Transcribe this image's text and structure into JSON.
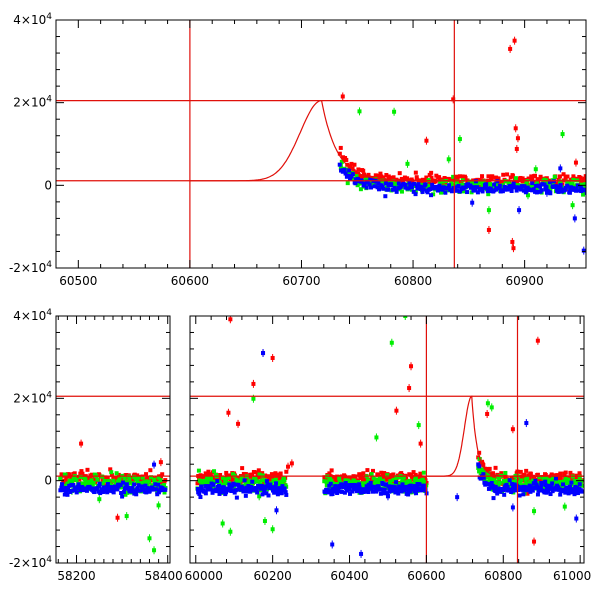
{
  "chart_data": [
    {
      "type": "scatter",
      "title": "",
      "xlabel": "",
      "ylabel": "",
      "xlim": [
        60480,
        60955
      ],
      "ylim": [
        -20000,
        40000
      ],
      "x_ticks": [
        {
          "value": 60500,
          "label": "60500"
        },
        {
          "value": 60600,
          "label": "60600"
        },
        {
          "value": 60700,
          "label": "60700"
        },
        {
          "value": 60800,
          "label": "60800"
        },
        {
          "value": 60900,
          "label": "60900"
        }
      ],
      "y_ticks": [
        {
          "value": -20000,
          "label": "-2×10⁴"
        },
        {
          "value": 0,
          "label": "0"
        },
        {
          "value": 20000,
          "label": "2×10⁴"
        },
        {
          "value": 40000,
          "label": "4×10⁴"
        }
      ],
      "hlines": [
        1100,
        20500
      ],
      "vlines": [
        60600,
        60837
      ],
      "model_curve": {
        "t0": 60718,
        "peak": 20500,
        "baseline": 1100,
        "rise_sigma": 19,
        "decay_tau": 14
      },
      "series": [
        {
          "name": "red",
          "color": "#ff0000",
          "x_start": 60735,
          "x_end": 60955,
          "baseline": 1200,
          "noise": 1400,
          "outliers": [
            [
              60737,
              21500
            ],
            [
              60812,
              10800
            ],
            [
              60836,
              20800
            ],
            [
              60868,
              -10800
            ],
            [
              60887,
              33000
            ],
            [
              60891,
              35000
            ],
            [
              60892,
              13800
            ],
            [
              60893,
              8800
            ],
            [
              60894,
              11400
            ],
            [
              60889,
              -13700
            ],
            [
              60890,
              -15200
            ],
            [
              60946,
              5500
            ]
          ]
        },
        {
          "name": "green",
          "color": "#00ee00",
          "x_start": 60735,
          "x_end": 60955,
          "baseline": -200,
          "noise": 1500,
          "outliers": [
            [
              60752,
              17900
            ],
            [
              60783,
              17800
            ],
            [
              60795,
              5200
            ],
            [
              60808,
              -1200
            ],
            [
              60832,
              6300
            ],
            [
              60842,
              11200
            ],
            [
              60868,
              -6000
            ],
            [
              60910,
              3900
            ],
            [
              60934,
              12400
            ],
            [
              60943,
              -4800
            ],
            [
              60903,
              -2400
            ]
          ]
        },
        {
          "name": "blue",
          "color": "#0000ff",
          "x_start": 60735,
          "x_end": 60955,
          "baseline": -700,
          "noise": 1200,
          "outliers": [
            [
              60853,
              -4200
            ],
            [
              60895,
              -6000
            ],
            [
              60932,
              4100
            ],
            [
              60945,
              -8000
            ],
            [
              60953,
              -15800
            ],
            [
              60920,
              -1800
            ]
          ]
        }
      ]
    },
    {
      "type": "scatter",
      "title": "",
      "xlabel": "",
      "ylabel": "",
      "ylim": [
        -20000,
        40000
      ],
      "segments": [
        {
          "xlim": [
            58155,
            58405
          ]
        },
        {
          "xlim": [
            59985,
            61010
          ]
        }
      ],
      "x_ticks": [
        {
          "value": 58200,
          "label": "58200",
          "segment": 0
        },
        {
          "value": 58400,
          "label": "58400",
          "segment": 0
        },
        {
          "value": 60000,
          "label": "60000",
          "segment": 1
        },
        {
          "value": 60200,
          "label": "60200",
          "segment": 1
        },
        {
          "value": 60400,
          "label": "60400",
          "segment": 1
        },
        {
          "value": 60600,
          "label": "60600",
          "segment": 1
        },
        {
          "value": 60800,
          "label": "60800",
          "segment": 1
        },
        {
          "value": 61000,
          "label": "61000",
          "segment": 1
        }
      ],
      "y_ticks": [
        {
          "value": -20000,
          "label": "-2×10⁴"
        },
        {
          "value": 0,
          "label": "0"
        },
        {
          "value": 20000,
          "label": "2×10⁴"
        },
        {
          "value": 40000,
          "label": "4×10⁴"
        }
      ],
      "hlines": [
        1100,
        20500
      ],
      "vlines": [
        60600,
        60837
      ],
      "model_curve": {
        "t0": 60718,
        "peak": 20500,
        "baseline": 1100,
        "rise_sigma": 19,
        "decay_tau": 14
      },
      "seasons": [
        [
          58165,
          58395
        ],
        [
          60005,
          60235
        ],
        [
          60335,
          60600
        ],
        [
          60735,
          61005
        ]
      ],
      "series": [
        {
          "name": "red",
          "color": "#ff0000",
          "baseline": 500,
          "noise": 1500,
          "outliers": [
            [
              58210,
              9000
            ],
            [
              58290,
              -9000
            ],
            [
              58385,
              4500
            ],
            [
              60090,
              39200
            ],
            [
              60085,
              16500
            ],
            [
              60110,
              13800
            ],
            [
              60150,
              23500
            ],
            [
              60175,
              31000
            ],
            [
              60200,
              29800
            ],
            [
              60240,
              3400
            ],
            [
              60522,
              17000
            ],
            [
              60555,
              22500
            ],
            [
              60560,
              27800
            ],
            [
              60880,
              -14800
            ],
            [
              60890,
              34000
            ],
            [
              60825,
              12500
            ],
            [
              60758,
              16200
            ],
            [
              60585,
              9000
            ],
            [
              60250,
              4200
            ]
          ]
        },
        {
          "name": "green",
          "color": "#00ee00",
          "baseline": -800,
          "noise": 1800,
          "outliers": [
            [
              58190,
              -2500
            ],
            [
              58250,
              -4500
            ],
            [
              58310,
              -8600
            ],
            [
              58360,
              -14000
            ],
            [
              58370,
              -16900
            ],
            [
              58380,
              -6000
            ],
            [
              60070,
              -10400
            ],
            [
              60090,
              -12400
            ],
            [
              60150,
              19900
            ],
            [
              60165,
              -3800
            ],
            [
              60180,
              -9800
            ],
            [
              60200,
              -11800
            ],
            [
              60510,
              33500
            ],
            [
              60545,
              40000
            ],
            [
              60560,
              -2400
            ],
            [
              60580,
              13500
            ],
            [
              60770,
              17800
            ],
            [
              60760,
              18800
            ],
            [
              60880,
              -7400
            ],
            [
              60960,
              -6300
            ],
            [
              60470,
              10500
            ]
          ]
        },
        {
          "name": "blue",
          "color": "#0000ff",
          "baseline": -2000,
          "noise": 1300,
          "outliers": [
            [
              58370,
              3900
            ],
            [
              60175,
              31000
            ],
            [
              60210,
              -7200
            ],
            [
              60430,
              -17800
            ],
            [
              60500,
              -3800
            ],
            [
              60570,
              -2600
            ],
            [
              60680,
              -4000
            ],
            [
              60990,
              -9200
            ],
            [
              60860,
              14000
            ],
            [
              60355,
              -15500
            ],
            [
              60825,
              -6500
            ]
          ]
        }
      ]
    }
  ]
}
